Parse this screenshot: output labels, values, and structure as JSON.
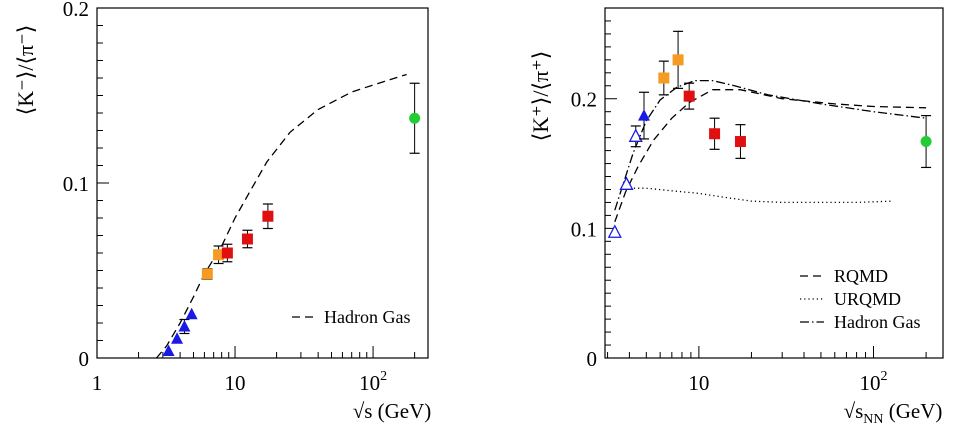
{
  "chart_data": [
    {
      "type": "scatter",
      "title": "",
      "ylabel": "⟨K⁻⟩/⟨π⁻⟩",
      "xlabel": "√s (GeV)",
      "x_scale": "log",
      "xlim": [
        1,
        250
      ],
      "ylim": [
        0,
        0.2
      ],
      "y_ticks": [
        0,
        0.1,
        0.2
      ],
      "y_tick_labels": [
        "0",
        "0.1",
        "0.2"
      ],
      "x_ticks": [
        1,
        10,
        100
      ],
      "x_tick_labels": [
        "1",
        "10",
        "10²"
      ],
      "legend": {
        "placement": "bottom-right",
        "entries": [
          {
            "label": "Hadron Gas",
            "style": "dashed"
          }
        ]
      },
      "curves": [
        {
          "name": "Hadron Gas",
          "style": "dashed",
          "x": [
            2.7,
            3.2,
            4.0,
            5.0,
            6.0,
            8.0,
            10.0,
            13.0,
            17.0,
            25.0,
            40.0,
            70.0,
            100.0,
            175.0
          ],
          "y": [
            0.0,
            0.007,
            0.02,
            0.035,
            0.048,
            0.064,
            0.08,
            0.096,
            0.112,
            0.129,
            0.142,
            0.152,
            0.156,
            0.162
          ]
        }
      ],
      "series": [
        {
          "color": "#1a1ae6",
          "marker": "triangle-filled",
          "x": [
            3.3,
            3.8,
            4.3,
            4.85
          ],
          "y": [
            0.004,
            0.011,
            0.018,
            0.025
          ],
          "err": [
            0.0,
            0.0,
            0.004,
            0.0
          ]
        },
        {
          "color": "#f59a23",
          "marker": "square",
          "x": [
            6.3,
            7.6
          ],
          "y": [
            0.048,
            0.059
          ],
          "err": [
            0.003,
            0.005
          ]
        },
        {
          "color": "#e01010",
          "marker": "square",
          "x": [
            8.8,
            12.3,
            17.3
          ],
          "y": [
            0.06,
            0.068,
            0.081
          ],
          "err": [
            0.005,
            0.005,
            0.007
          ]
        },
        {
          "color": "#22cc33",
          "marker": "circle",
          "x": [
            200
          ],
          "y": [
            0.137
          ],
          "err": [
            0.02
          ]
        }
      ]
    },
    {
      "type": "scatter",
      "title": "",
      "ylabel": "⟨K⁺⟩/⟨π⁺⟩",
      "xlabel": "√sNN (GeV)",
      "x_scale": "log",
      "xlim": [
        2.9,
        250
      ],
      "ylim": [
        0,
        0.27
      ],
      "y_ticks": [
        0,
        0.1,
        0.2
      ],
      "y_tick_labels": [
        "0",
        "0.1",
        "0.2"
      ],
      "x_ticks": [
        10,
        100
      ],
      "x_tick_labels": [
        "10",
        "10²"
      ],
      "legend": {
        "placement": "bottom-right",
        "entries": [
          {
            "label": "RQMD",
            "style": "dashed"
          },
          {
            "label": "URQMD",
            "style": "dotted"
          },
          {
            "label": "Hadron Gas",
            "style": "dashdot"
          }
        ]
      },
      "curves": [
        {
          "name": "RQMD",
          "style": "dashed",
          "x": [
            3.3,
            3.8,
            4.5,
            5.5,
            7.0,
            8.8,
            12.0,
            17.3,
            30.0,
            60.0,
            100.0,
            200.0
          ],
          "y": [
            0.105,
            0.128,
            0.148,
            0.168,
            0.185,
            0.197,
            0.207,
            0.207,
            0.2,
            0.196,
            0.194,
            0.193
          ]
        },
        {
          "name": "URQMD",
          "style": "dotted",
          "x": [
            3.8,
            5.0,
            7.0,
            10.0,
            14.0,
            20.0,
            30.0,
            50.0,
            80.0,
            130.0
          ],
          "y": [
            0.131,
            0.131,
            0.129,
            0.127,
            0.124,
            0.121,
            0.12,
            0.12,
            0.12,
            0.121
          ]
        },
        {
          "name": "Hadron Gas",
          "style": "dashdot",
          "x": [
            3.3,
            3.7,
            4.2,
            5.0,
            6.0,
            7.5,
            9.5,
            12.0,
            16.0,
            25.0,
            50.0,
            100.0,
            200.0
          ],
          "y": [
            0.114,
            0.135,
            0.158,
            0.183,
            0.199,
            0.209,
            0.214,
            0.214,
            0.21,
            0.203,
            0.196,
            0.19,
            0.185
          ]
        }
      ],
      "series": [
        {
          "color": "#1a1ae6",
          "marker": "triangle-open",
          "x": [
            3.3,
            3.85,
            4.35
          ],
          "y": [
            0.097,
            0.134,
            0.171
          ],
          "err": [
            0.0,
            0.0,
            0.008
          ]
        },
        {
          "color": "#1a1ae6",
          "marker": "triangle-filled",
          "x": [
            4.85
          ],
          "y": [
            0.187
          ],
          "err": [
            0.018
          ]
        },
        {
          "color": "#f59a23",
          "marker": "square",
          "x": [
            6.3,
            7.6
          ],
          "y": [
            0.216,
            0.23
          ],
          "err": [
            0.013,
            0.022
          ]
        },
        {
          "color": "#e01010",
          "marker": "square",
          "x": [
            8.8,
            12.3,
            17.3
          ],
          "y": [
            0.202,
            0.173,
            0.167
          ],
          "err": [
            0.01,
            0.012,
            0.013
          ]
        },
        {
          "color": "#22cc33",
          "marker": "circle",
          "x": [
            200
          ],
          "y": [
            0.167
          ],
          "err": [
            0.02
          ]
        }
      ]
    }
  ]
}
